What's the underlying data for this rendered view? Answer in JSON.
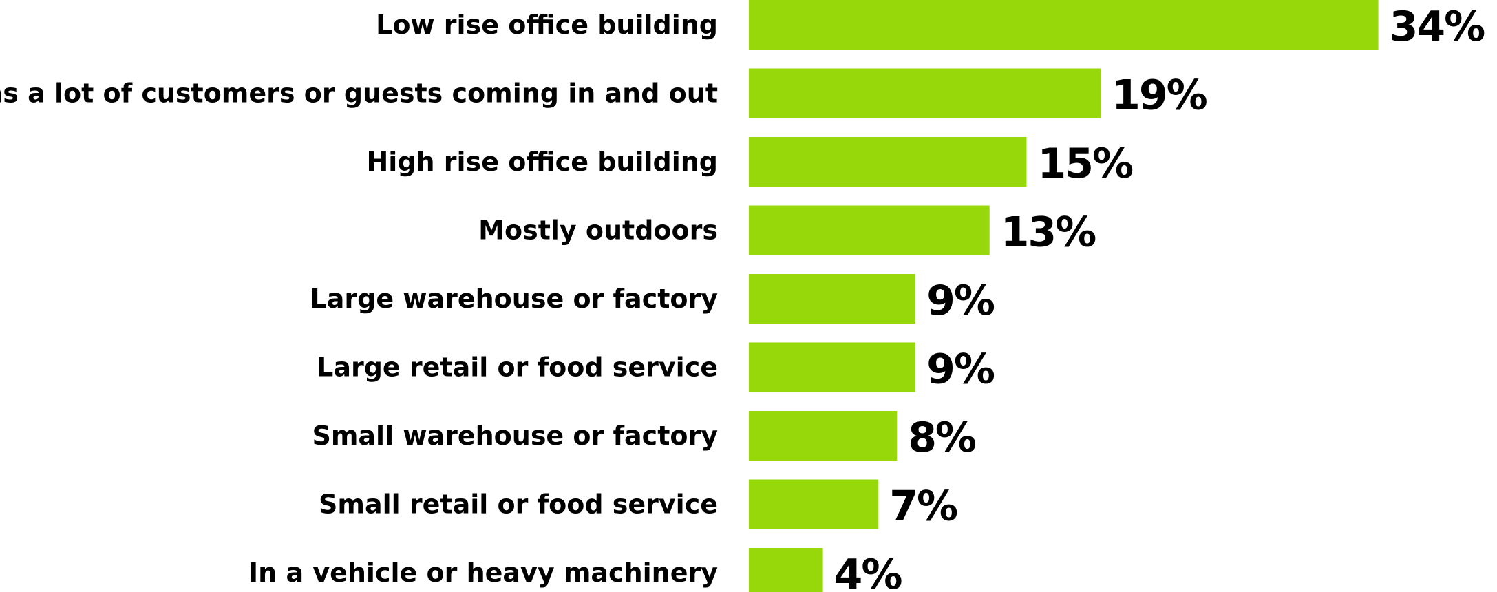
{
  "chart_data": {
    "type": "bar",
    "orientation": "horizontal",
    "categories": [
      "Low rise office building",
      "Has a lot of customers or guests coming in and out",
      "High rise office building",
      "Mostly outdoors",
      "Large warehouse or factory",
      "Large retail or food service",
      "Small warehouse or factory",
      "Small retail or food service",
      "In a vehicle or heavy machinery"
    ],
    "values": [
      34,
      19,
      15,
      13,
      9,
      9,
      8,
      7,
      4
    ],
    "value_labels": [
      "34%",
      "19%",
      "15%",
      "13%",
      "9%",
      "9%",
      "8%",
      "7%",
      "4%"
    ],
    "unit": "%",
    "title": "",
    "xlabel": "",
    "ylabel": "",
    "grid": false,
    "legend": "none",
    "bar_color": "#97d80a"
  }
}
